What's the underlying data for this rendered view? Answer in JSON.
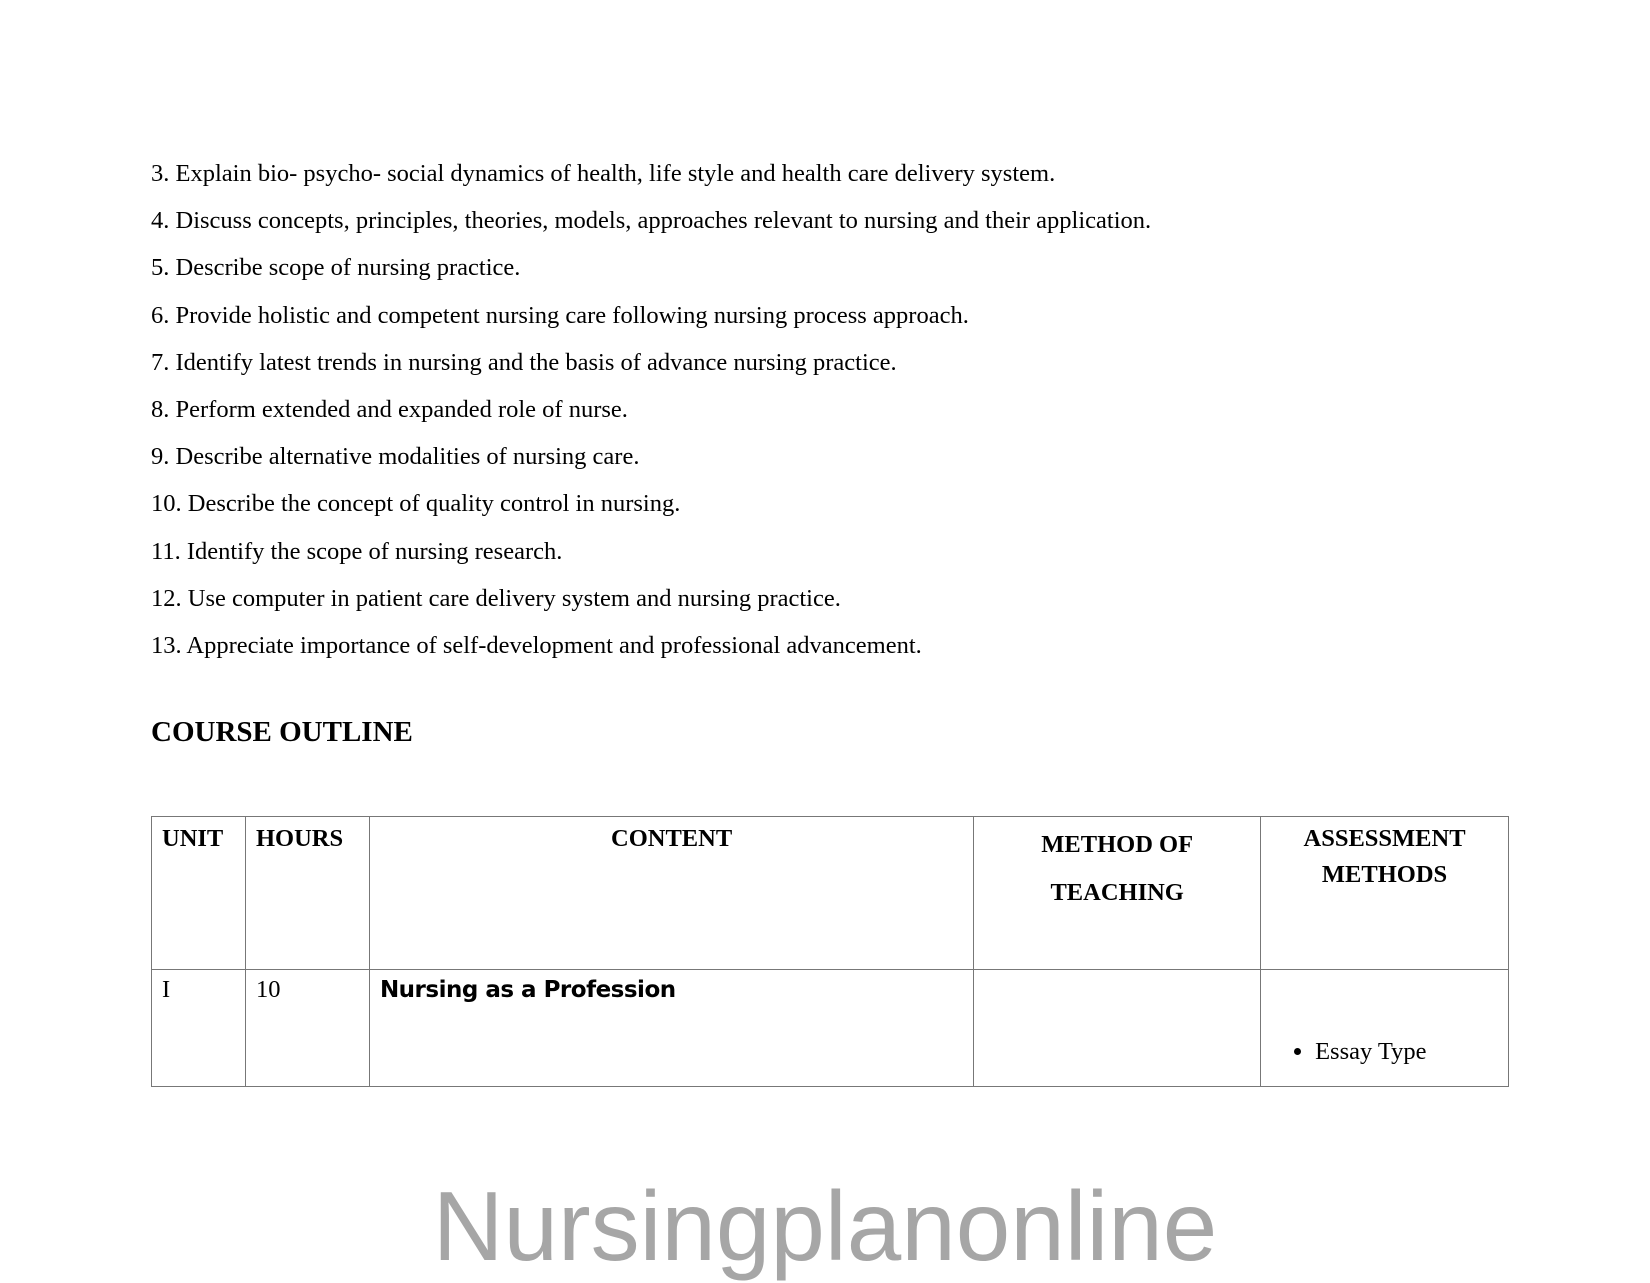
{
  "objectives": [
    "3. Explain bio- psycho- social dynamics of health, life style and health care delivery system.",
    "4. Discuss concepts, principles, theories, models, approaches relevant to nursing and their application.",
    "5. Describe scope of nursing practice.",
    "6. Provide holistic and competent nursing care following nursing process approach.",
    "7. Identify latest trends in nursing and the basis of advance nursing practice.",
    "8. Perform extended and expanded role of nurse.",
    "9. Describe alternative modalities of nursing care.",
    "10. Describe the concept of quality control in nursing.",
    "11. Identify the scope of nursing research.",
    "12. Use computer in patient care delivery system and nursing practice.",
    "13. Appreciate importance of self-development and professional advancement."
  ],
  "course_outline": {
    "heading": "COURSE OUTLINE",
    "headers": {
      "unit": "UNIT",
      "hours": "HOURS",
      "content": "CONTENT",
      "method_line1": "METHOD OF",
      "method_line2": "TEACHING",
      "assessment_line1": "ASSESSMENT",
      "assessment_line2": "METHODS"
    },
    "rows": [
      {
        "unit": "I",
        "hours": "10",
        "content": "Nursing as a Profession",
        "method": "",
        "assessment": [
          "Essay Type"
        ]
      }
    ]
  },
  "watermark": "Nursingplanonline"
}
